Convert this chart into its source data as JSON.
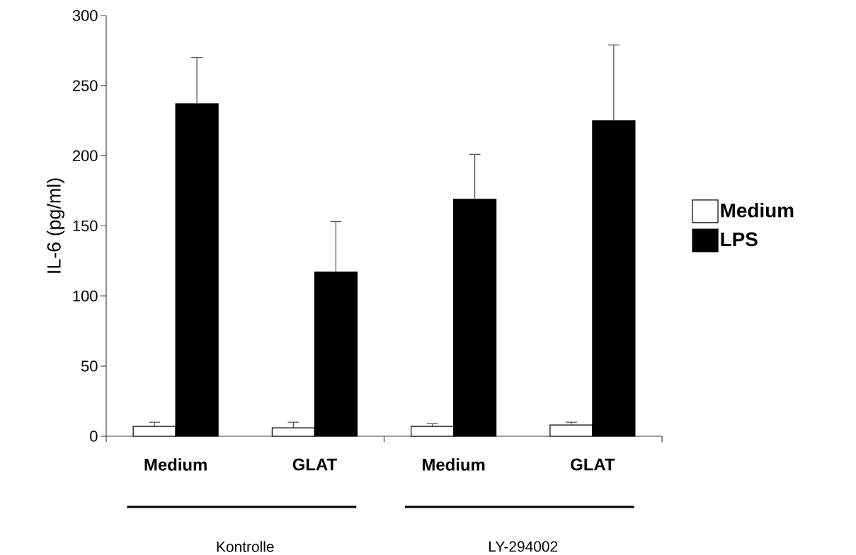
{
  "chart_data": {
    "type": "bar",
    "ylabel": "IL-6 (pg/ml)",
    "categories": [
      "Medium",
      "GLAT",
      "Medium",
      "GLAT"
    ],
    "series": [
      {
        "name": "Medium",
        "color": "#ffffff",
        "values": [
          7,
          6,
          7,
          8
        ],
        "errors": [
          [
            7,
            10
          ],
          [
            6,
            10
          ],
          [
            7,
            9
          ],
          [
            8,
            10
          ]
        ]
      },
      {
        "name": "LPS",
        "color": "#000000",
        "values": [
          237,
          117,
          169,
          225
        ],
        "errors": [
          [
            237,
            270
          ],
          [
            117,
            153
          ],
          [
            169,
            201
          ],
          [
            225,
            279
          ]
        ]
      }
    ],
    "ylim": [
      0,
      300
    ],
    "yticks": [
      0,
      50,
      100,
      150,
      200,
      250,
      300
    ],
    "annotations": [
      "Kontrolle",
      "LY-294002"
    ],
    "legend": "right"
  }
}
